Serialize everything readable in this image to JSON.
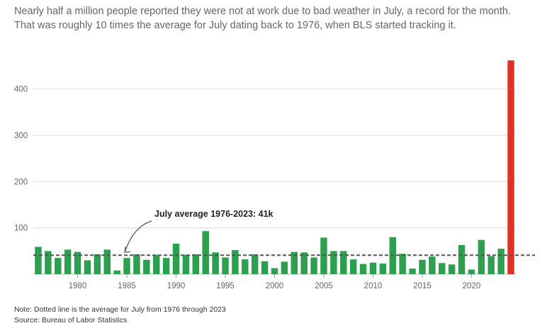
{
  "subtitle": {
    "line1": "Nearly half a million people reported they were not at work due to bad weather in July, a record for the month.",
    "line2": "That was roughly 10 times the average for July dating back to 1976, when BLS started tracking it."
  },
  "notes": {
    "note": "Note: Dotted line is the average for July from 1976 through 2023",
    "source": "Source: Bureau of Labor Statistics"
  },
  "colors": {
    "bar": "#2ca04e",
    "highlight": "#e03127",
    "average_line": "#555555",
    "grid": "#dddddd"
  },
  "chart_data": {
    "type": "bar",
    "x": [
      1976,
      1977,
      1978,
      1979,
      1980,
      1981,
      1982,
      1983,
      1984,
      1985,
      1986,
      1987,
      1988,
      1989,
      1990,
      1991,
      1992,
      1993,
      1994,
      1995,
      1996,
      1997,
      1998,
      1999,
      2000,
      2001,
      2002,
      2003,
      2004,
      2005,
      2006,
      2007,
      2008,
      2009,
      2010,
      2011,
      2012,
      2013,
      2014,
      2015,
      2016,
      2017,
      2018,
      2019,
      2020,
      2021,
      2022,
      2023,
      2024
    ],
    "values": [
      59,
      50,
      35,
      53,
      48,
      30,
      43,
      53,
      8,
      35,
      43,
      31,
      42,
      35,
      66,
      42,
      43,
      93,
      47,
      36,
      52,
      32,
      43,
      28,
      13,
      27,
      48,
      47,
      36,
      79,
      50,
      50,
      32,
      22,
      25,
      23,
      80,
      44,
      12,
      31,
      38,
      24,
      21,
      63,
      10,
      74,
      39,
      55,
      462
    ],
    "highlight_index": 48,
    "average": {
      "value": 41,
      "label": "July average 1976-2023: 41k"
    },
    "y_ticks": [
      100,
      200,
      300,
      400
    ],
    "x_ticks": [
      1980,
      1985,
      1990,
      1995,
      2000,
      2005,
      2010,
      2015,
      2020
    ],
    "ylim": [
      0,
      470
    ],
    "grid": true,
    "xlabel": "",
    "ylabel": ""
  }
}
